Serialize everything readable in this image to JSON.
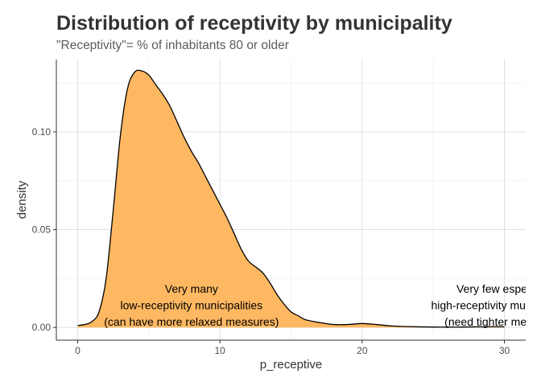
{
  "chart_data": {
    "type": "area",
    "title": "Distribution of receptivity by municipality",
    "subtitle": "\"Receptivity\"= % of inhabitants 80 or older",
    "xlabel": "p_receptive",
    "ylabel": "density",
    "xlim": [
      -1.5,
      31.5
    ],
    "ylim": [
      -0.0065,
      0.137
    ],
    "x_ticks": [
      0,
      10,
      20,
      30
    ],
    "x_tick_labels": [
      "0",
      "10",
      "20",
      "30"
    ],
    "y_ticks": [
      0.0,
      0.05,
      0.1
    ],
    "y_tick_labels": [
      "0.00",
      "0.05",
      "0.10"
    ],
    "grid": true,
    "fill_color": "#ffb862",
    "line_color": "#000000",
    "series": [
      {
        "x": [
          0.0,
          0.5,
          1.0,
          1.5,
          2.0,
          2.5,
          3.0,
          3.5,
          4.0,
          4.5,
          5.0,
          5.5,
          6.0,
          6.5,
          7.0,
          7.5,
          8.0,
          8.5,
          9.0,
          9.5,
          10.0,
          10.5,
          11.0,
          11.5,
          12.0,
          12.5,
          13.0,
          13.5,
          14.0,
          14.5,
          15.0,
          15.5,
          16.0,
          17.0,
          18.0,
          19.0,
          20.0,
          21.0,
          22.0,
          23.0,
          24.0,
          25.0,
          26.0,
          27.0,
          28.0,
          29.0,
          30.0
        ],
        "y": [
          0.001,
          0.0015,
          0.003,
          0.008,
          0.025,
          0.06,
          0.098,
          0.122,
          0.1305,
          0.1312,
          0.129,
          0.124,
          0.119,
          0.113,
          0.105,
          0.097,
          0.09,
          0.084,
          0.077,
          0.07,
          0.063,
          0.056,
          0.048,
          0.04,
          0.034,
          0.031,
          0.028,
          0.023,
          0.017,
          0.012,
          0.008,
          0.006,
          0.004,
          0.0025,
          0.0015,
          0.0015,
          0.002,
          0.0015,
          0.0008,
          0.0005,
          0.0003,
          0.0002,
          0.0002,
          0.0002,
          0.0003,
          0.0004,
          0.0003
        ]
      }
    ],
    "annotations": [
      {
        "x": 8.0,
        "y": 0.0008,
        "anchor": "middle",
        "lines": [
          "Very many",
          "low-receptivity municipalities",
          "(can have more relaxed measures)"
        ]
      },
      {
        "x": 30.0,
        "y": 0.0008,
        "anchor": "middle",
        "lines": [
          "Very few especially",
          "high-receptivity municipalities",
          "(need tighter measures)"
        ]
      }
    ]
  }
}
